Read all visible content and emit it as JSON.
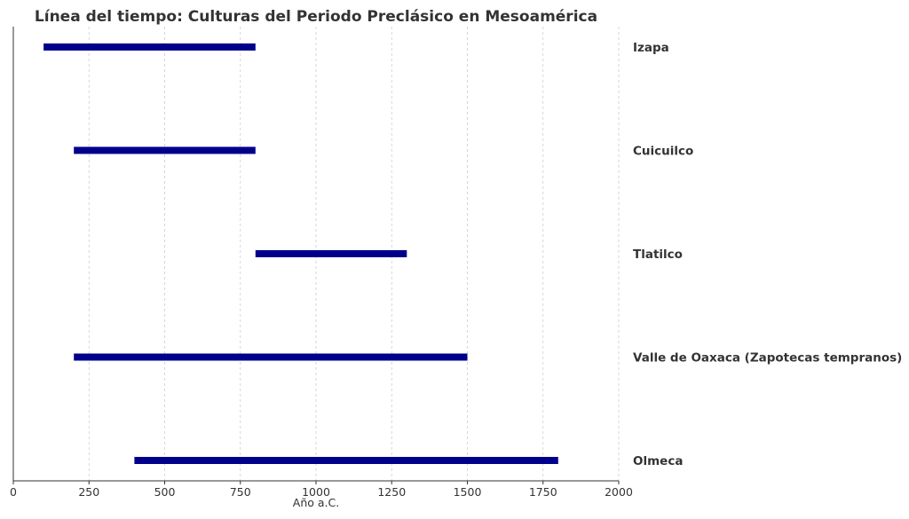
{
  "chart_data": {
    "type": "bar",
    "orientation": "horizontal-range",
    "title": "Línea del tiempo: Culturas del Periodo Preclásico en Mesoamérica",
    "xlabel": "Año a.C.",
    "ylabel": "",
    "xlim": [
      0,
      2000
    ],
    "xticks": [
      0,
      250,
      500,
      750,
      1000,
      1250,
      1500,
      1750,
      2000
    ],
    "grid": "x-dashed",
    "bar_color": "#00008b",
    "categories": [
      "Izapa",
      "Cuicuilco",
      "Tlatilco",
      "Valle de Oaxaca (Zapotecas tempranos)",
      "Olmeca"
    ],
    "ranges": [
      {
        "category": "Izapa",
        "start": 100,
        "end": 800
      },
      {
        "category": "Cuicuilco",
        "start": 200,
        "end": 800
      },
      {
        "category": "Tlatilco",
        "start": 800,
        "end": 1300
      },
      {
        "category": "Valle de Oaxaca (Zapotecas tempranos)",
        "start": 200,
        "end": 1500
      },
      {
        "category": "Olmeca",
        "start": 400,
        "end": 1800
      }
    ]
  }
}
